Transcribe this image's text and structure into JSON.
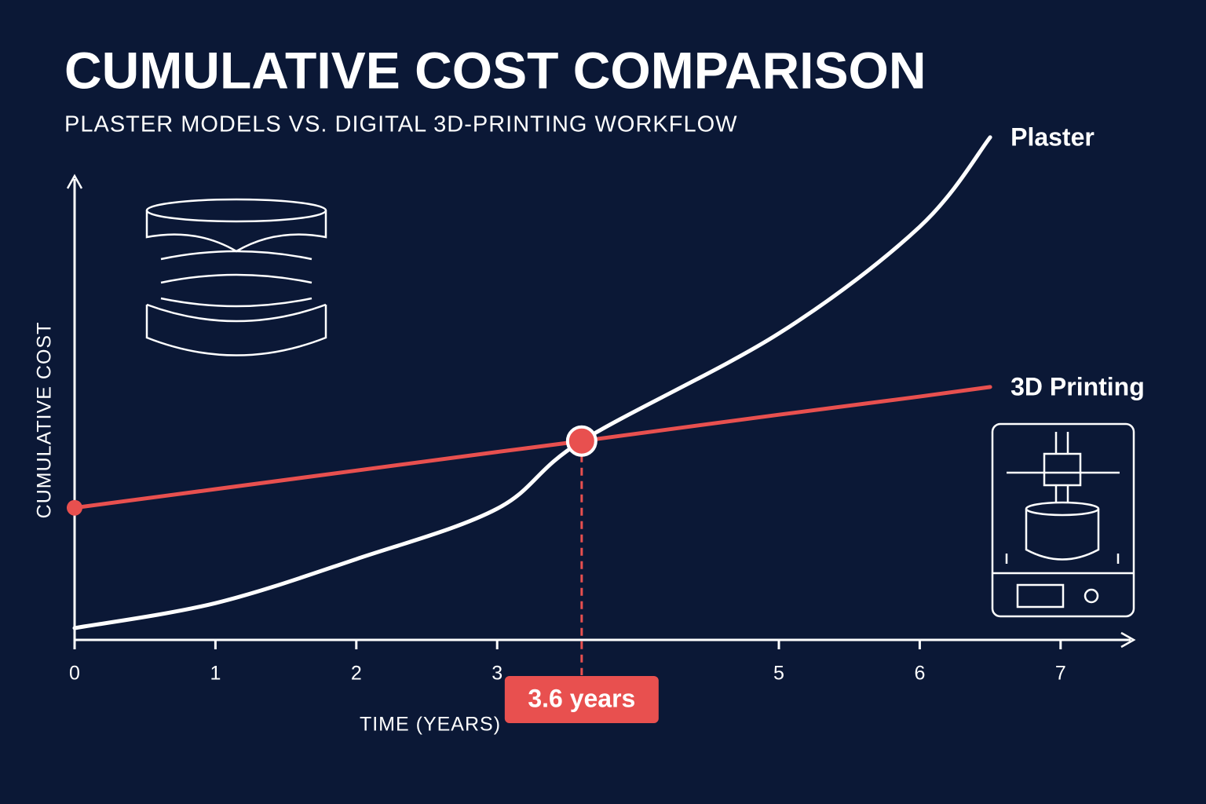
{
  "chart_data": {
    "type": "line",
    "title": "CUMULATIVE COST COMPARISON",
    "subtitle": "PLASTER MODELS VS. DIGITAL 3D-PRINTING WORKFLOW",
    "y_label": "CUMULATIVE COST",
    "x_label": "TIME (YEARS)",
    "x": [
      0,
      1,
      2,
      3,
      3.6,
      5,
      6,
      6.5
    ],
    "series": [
      {
        "name": "Plaster",
        "color": "#ffffff",
        "values": [
          2.6,
          8.1,
          17.8,
          28.9,
          43.8,
          67.5,
          91,
          110.7
        ]
      },
      {
        "name": "3D Printing",
        "color": "#e8504f",
        "values": [
          29.1,
          33.2,
          37.3,
          41.4,
          43.8,
          49.6,
          53.6,
          55.7
        ]
      }
    ],
    "xlim": [
      0,
      7.5
    ],
    "xticks": [
      0,
      1,
      2,
      3,
      5,
      6,
      7
    ],
    "ylim": [
      0,
      115
    ],
    "annotation": {
      "x": 3.6,
      "label": "3.6 years",
      "color": "#e8504f"
    }
  }
}
